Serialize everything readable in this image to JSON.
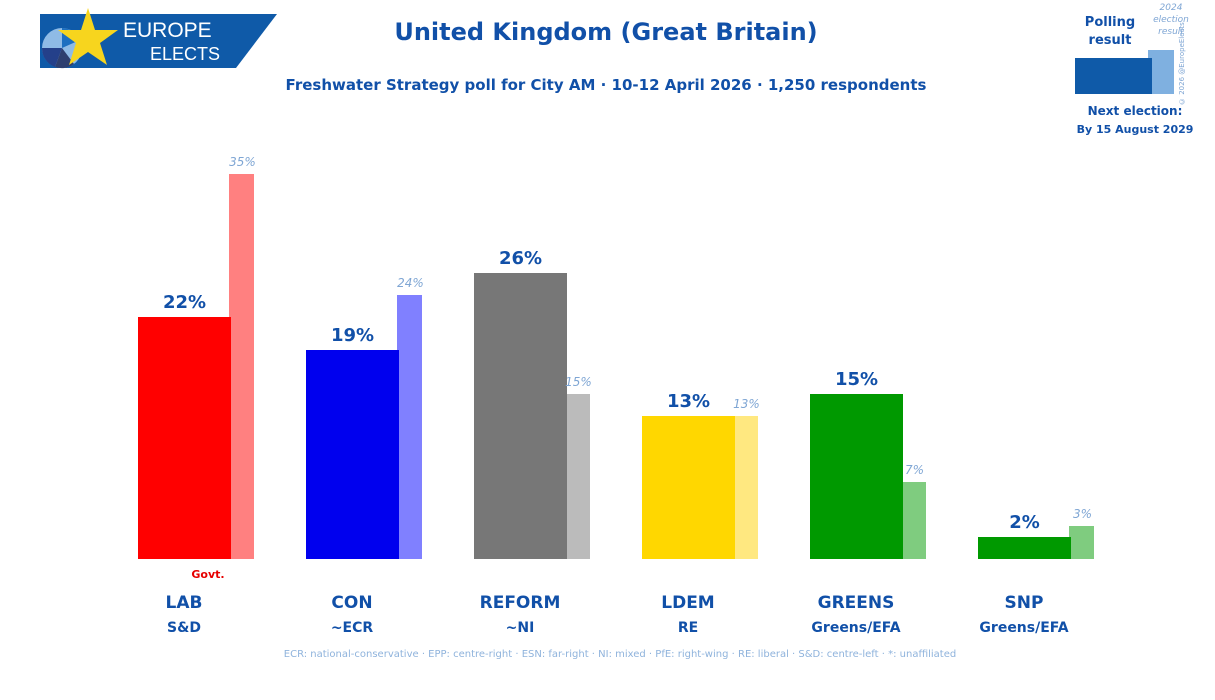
{
  "logo": {
    "line1": "EUROPE",
    "line2": "ELECTS"
  },
  "title": "United Kingdom (Great Britain)",
  "subtitle": "Freshwater Strategy poll for City AM · 10-12 April 2026 · 1,250 respondents",
  "legend": {
    "polling": "Polling result",
    "polling_l1": "Polling",
    "polling_l2": "result",
    "prev_l1": "2024",
    "prev_l2": "election",
    "prev_l3": "result",
    "copyright": "© 2026 @EuropeElects",
    "next_election_label": "Next election:",
    "next_election_date": "By 15 August 2029",
    "poll_color": "#0f5aa8",
    "prev_color": "#7fb0e0"
  },
  "footnote": "ECR: national-conservative · EPP: centre-right · ESN: far-right · NI: mixed · PfE: right-wing · RE: liberal · S&D: centre-left · *: unaffiliated",
  "chart_data": {
    "type": "bar",
    "categories": [
      "LAB",
      "CON",
      "REFORM",
      "LDEM",
      "GREENS",
      "SNP"
    ],
    "groups": [
      "S&D",
      "~ECR",
      "~NI",
      "RE",
      "Greens/EFA",
      "Greens/EFA"
    ],
    "series": [
      {
        "name": "Polling result",
        "values": [
          22,
          19,
          26,
          13,
          15,
          2
        ],
        "labels": [
          "22%",
          "19%",
          "26%",
          "13%",
          "15%",
          "2%"
        ]
      },
      {
        "name": "2024 election result",
        "values": [
          35,
          24,
          15,
          13,
          7,
          3
        ],
        "labels": [
          "35%",
          "24%",
          "15%",
          "13%",
          "7%",
          "3%"
        ]
      }
    ],
    "colors": [
      "#ff0000",
      "#0000ee",
      "#777777",
      "#ffd700",
      "#009900",
      "#009900"
    ],
    "prev_colors": [
      "#ff8080",
      "#8080ff",
      "#bbbbbb",
      "#ffe880",
      "#7fcc7f",
      "#7fcc7f"
    ],
    "annotations": [
      {
        "category": "LAB",
        "text": "Govt."
      }
    ],
    "ylim": [
      0,
      35
    ]
  }
}
